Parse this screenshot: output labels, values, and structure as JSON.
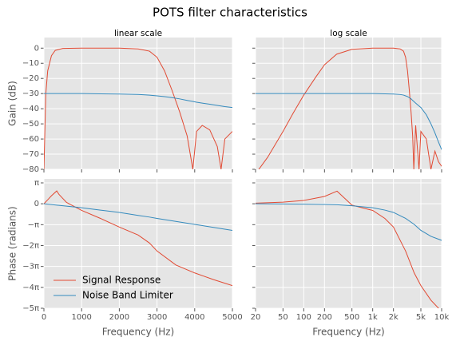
{
  "title": "POTS filter characteristics",
  "chart_data": [
    {
      "type": "line",
      "title": "linear scale",
      "ylabel": "Gain (dB)",
      "x": [
        0,
        50,
        100,
        200,
        300,
        500,
        1000,
        2000,
        2500,
        2800,
        3000,
        3200,
        3400,
        3600,
        3800,
        3950,
        4050,
        4200,
        4400,
        4600,
        4700,
        4800,
        5000
      ],
      "series": [
        {
          "color": "#e24a33",
          "values": [
            -80,
            -30,
            -15,
            -5,
            -1.5,
            -0.2,
            0,
            0,
            -0.5,
            -2,
            -6,
            -15,
            -28,
            -42,
            -58,
            -80,
            -55,
            -51,
            -54,
            -65,
            -80,
            -60,
            -55
          ]
        },
        {
          "color": "#348abd",
          "values": [
            -30,
            -30,
            -30,
            -30,
            -30,
            -30,
            -30,
            -30.3,
            -30.6,
            -31,
            -31.5,
            -32,
            -32.7,
            -33.5,
            -34.5,
            -35.2,
            -35.7,
            -36.3,
            -37,
            -37.8,
            -38.2,
            -38.6,
            -39.2
          ]
        }
      ],
      "xlim": [
        0,
        5000
      ],
      "xticks": [
        0,
        1000,
        2000,
        3000,
        4000,
        5000
      ],
      "xtick_labels": false,
      "ylim": [
        -80,
        7
      ],
      "yticks": [
        {
          "value": 0,
          "label": "0"
        },
        {
          "value": -10,
          "label": "−10"
        },
        {
          "value": -20,
          "label": "−20"
        },
        {
          "value": -30,
          "label": "−30"
        },
        {
          "value": -40,
          "label": "−40"
        },
        {
          "value": -50,
          "label": "−50"
        },
        {
          "value": -60,
          "label": "−60"
        },
        {
          "value": -70,
          "label": "−70"
        },
        {
          "value": -80,
          "label": "−80"
        }
      ],
      "grid": true
    },
    {
      "type": "line",
      "title": "log scale",
      "xscale": "log",
      "x": [
        20,
        30,
        50,
        70,
        100,
        150,
        200,
        300,
        500,
        1000,
        2000,
        2500,
        2800,
        3000,
        3200,
        3400,
        3600,
        3800,
        3950,
        4200,
        4700,
        5000,
        6000,
        7000,
        8000,
        9000,
        10000
      ],
      "series": [
        {
          "color": "#e24a33",
          "values": [
            -83,
            -72,
            -55,
            -43,
            -31,
            -19,
            -11,
            -4,
            -0.8,
            0,
            0,
            -0.5,
            -2,
            -6,
            -15,
            -28,
            -42,
            -58,
            -80,
            -51,
            -80,
            -55,
            -60,
            -80,
            -68,
            -75,
            -78
          ]
        },
        {
          "color": "#348abd",
          "values": [
            -30,
            -30,
            -30,
            -30,
            -30,
            -30,
            -30,
            -30,
            -30,
            -30,
            -30.3,
            -30.6,
            -31,
            -31.5,
            -32,
            -32.7,
            -33.5,
            -34.5,
            -35.2,
            -36.3,
            -38.2,
            -39.2,
            -44,
            -50,
            -56,
            -62,
            -67
          ]
        }
      ],
      "xlim": [
        20,
        10000
      ],
      "xticks": [
        20,
        50,
        100,
        200,
        500,
        1000,
        2000,
        5000,
        10000
      ],
      "xtick_labels": false,
      "ylim": [
        -80,
        7
      ],
      "yticks": [
        0,
        -10,
        -20,
        -30,
        -40,
        -50,
        -60,
        -70,
        -80
      ],
      "ytick_labels": false,
      "grid": true
    },
    {
      "type": "line",
      "ylabel": "Phase (radians)",
      "xlabel": "Frequency (Hz)",
      "x": [
        0,
        100,
        200,
        340,
        400,
        600,
        1000,
        1500,
        2000,
        2500,
        2800,
        3000,
        3500,
        4000,
        4500,
        5000
      ],
      "series": [
        {
          "name": "Signal Response",
          "color": "#e24a33",
          "values": [
            0,
            0.6,
            1.2,
            1.93,
            1.4,
            0.2,
            -1.0,
            -2.2,
            -3.5,
            -4.7,
            -5.9,
            -7.1,
            -9.2,
            -10.4,
            -11.4,
            -12.3
          ]
        },
        {
          "name": "Noise Band Limiter",
          "color": "#348abd",
          "values": [
            0,
            -0.06,
            -0.12,
            -0.2,
            -0.24,
            -0.36,
            -0.6,
            -0.95,
            -1.3,
            -1.75,
            -2.0,
            -2.2,
            -2.65,
            -3.1,
            -3.55,
            -4.0
          ]
        }
      ],
      "xlim": [
        0,
        5000
      ],
      "xticks": [
        0,
        1000,
        2000,
        3000,
        4000,
        5000
      ],
      "ylim": [
        -15.708,
        3.74
      ],
      "yticks": [
        {
          "value": 3.1416,
          "label": "π"
        },
        {
          "value": 0,
          "label": "0"
        },
        {
          "value": -3.1416,
          "label": "−π"
        },
        {
          "value": -6.2832,
          "label": "−2π"
        },
        {
          "value": -9.4248,
          "label": "−3π"
        },
        {
          "value": -12.5664,
          "label": "−4π"
        },
        {
          "value": -15.708,
          "label": "−5π"
        }
      ],
      "legend": "lower left",
      "grid": true
    },
    {
      "type": "line",
      "xscale": "log",
      "xlabel": "Frequency (Hz)",
      "x": [
        20,
        50,
        100,
        200,
        304,
        500,
        700,
        1000,
        1500,
        2000,
        3000,
        4000,
        5000,
        7000,
        10000
      ],
      "series": [
        {
          "color": "#e24a33",
          "values": [
            0.1,
            0.25,
            0.5,
            1.1,
            1.9,
            -0.2,
            -0.6,
            -1.0,
            -2.2,
            -3.5,
            -7.1,
            -10.4,
            -12.3,
            -14.5,
            -16.2
          ]
        },
        {
          "color": "#348abd",
          "values": [
            0,
            -0.02,
            -0.05,
            -0.1,
            -0.15,
            -0.3,
            -0.45,
            -0.6,
            -0.95,
            -1.3,
            -2.2,
            -3.1,
            -4.0,
            -4.9,
            -5.5
          ]
        }
      ],
      "xlim": [
        20,
        10000
      ],
      "xticks": [
        20,
        50,
        100,
        200,
        500,
        {
          "value": 1000,
          "label": "1k"
        },
        {
          "value": 2000,
          "label": "2k"
        },
        {
          "value": 5000,
          "label": "5k"
        },
        {
          "value": 10000,
          "label": "10k"
        }
      ],
      "ylim": [
        -15.708,
        3.74
      ],
      "yticks": [
        3.1416,
        0,
        -3.1416,
        -6.2832,
        -9.4248,
        -12.5664,
        -15.708
      ],
      "ytick_labels": false,
      "grid": true
    }
  ]
}
